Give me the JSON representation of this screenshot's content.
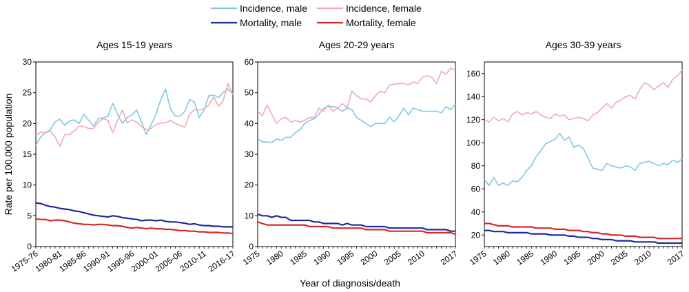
{
  "legend": [
    {
      "label": "Incidence, male",
      "color": "#7ec8e3"
    },
    {
      "label": "Incidence, female",
      "color": "#f2a6b8"
    },
    {
      "label": "Mortality, male",
      "color": "#1f2a9c"
    },
    {
      "label": "Mortality, female",
      "color": "#d62728"
    }
  ],
  "ylabel": "Rate per 100,000 population",
  "xlabel": "Year of diagnosis/death",
  "chart_data": [
    {
      "type": "line",
      "title": "Ages 15-19 years",
      "xlabel": "",
      "ylabel": "",
      "ylim": [
        0,
        30
      ],
      "yticks": [
        0,
        5,
        10,
        15,
        20,
        25,
        30
      ],
      "xlim": [
        1975,
        2016
      ],
      "xtick_labels": [
        {
          "x": 1975,
          "label": "1975-76"
        },
        {
          "x": 1980,
          "label": "1980-81"
        },
        {
          "x": 1985,
          "label": "1985-86"
        },
        {
          "x": 1990,
          "label": "1990-91"
        },
        {
          "x": 1995,
          "label": "1995-96"
        },
        {
          "x": 2000,
          "label": "2000-01"
        },
        {
          "x": 2005,
          "label": "2005-06"
        },
        {
          "x": 2010,
          "label": "2010-11"
        },
        {
          "x": 2016,
          "label": "2016-17"
        }
      ],
      "x": [
        1975,
        1976,
        1977,
        1978,
        1979,
        1980,
        1981,
        1982,
        1983,
        1984,
        1985,
        1986,
        1987,
        1988,
        1989,
        1990,
        1991,
        1992,
        1993,
        1994,
        1995,
        1996,
        1997,
        1998,
        1999,
        2000,
        2001,
        2002,
        2003,
        2004,
        2005,
        2006,
        2007,
        2008,
        2009,
        2010,
        2011,
        2012,
        2013,
        2014,
        2015,
        2016
      ],
      "series": [
        {
          "name": "Incidence, male",
          "color": "#7ec8e3",
          "values": [
            16.5,
            17.8,
            18.5,
            19.0,
            20.3,
            20.7,
            19.7,
            20.4,
            20.6,
            20.0,
            21.5,
            20.5,
            19.6,
            20.8,
            20.9,
            21.2,
            23.3,
            21.5,
            20.0,
            21.0,
            21.4,
            22.2,
            20.2,
            18.2,
            19.8,
            21.5,
            23.9,
            25.6,
            22.4,
            21.2,
            21.2,
            22.0,
            23.9,
            23.5,
            21.0,
            22.2,
            24.5,
            24.6,
            24.2,
            25.1,
            25.6,
            24.8
          ]
        },
        {
          "name": "Incidence, female",
          "color": "#f2a6b8",
          "values": [
            18.1,
            18.6,
            18.5,
            18.8,
            17.8,
            16.3,
            18.2,
            18.2,
            18.8,
            19.6,
            19.5,
            19.2,
            19.2,
            20.2,
            20.8,
            20.5,
            18.5,
            20.5,
            22.2,
            20.1,
            20.6,
            20.2,
            19.5,
            19.0,
            19.2,
            19.8,
            20.1,
            20.1,
            20.5,
            20.0,
            19.7,
            19.4,
            21.5,
            22.3,
            22.2,
            22.4,
            23.0,
            24.3,
            22.8,
            23.7,
            26.5,
            24.7
          ]
        },
        {
          "name": "Mortality, male",
          "color": "#1f2a9c",
          "values": [
            7.1,
            7.0,
            6.7,
            6.5,
            6.4,
            6.2,
            6.1,
            6.0,
            5.8,
            5.7,
            5.5,
            5.3,
            5.1,
            5.0,
            4.9,
            4.8,
            5.0,
            4.9,
            4.7,
            4.6,
            4.5,
            4.4,
            4.2,
            4.3,
            4.3,
            4.2,
            4.3,
            4.1,
            4.0,
            4.0,
            3.9,
            3.8,
            3.6,
            3.7,
            3.5,
            3.4,
            3.4,
            3.3,
            3.3,
            3.2,
            3.2,
            3.2
          ]
        },
        {
          "name": "Mortality, female",
          "color": "#d62728",
          "values": [
            4.5,
            4.4,
            4.4,
            4.2,
            4.3,
            4.3,
            4.2,
            4.0,
            3.8,
            3.7,
            3.6,
            3.6,
            3.5,
            3.6,
            3.6,
            3.5,
            3.4,
            3.4,
            3.3,
            3.1,
            3.0,
            3.1,
            3.0,
            2.9,
            3.0,
            2.9,
            2.9,
            2.8,
            2.8,
            2.7,
            2.6,
            2.6,
            2.5,
            2.5,
            2.4,
            2.4,
            2.3,
            2.3,
            2.3,
            2.2,
            2.2,
            2.1
          ]
        }
      ]
    },
    {
      "type": "line",
      "title": "Ages 20-29 years",
      "xlabel": "",
      "ylabel": "",
      "ylim": [
        0,
        60
      ],
      "yticks": [
        0,
        10,
        20,
        30,
        40,
        50,
        60
      ],
      "xlim": [
        1975,
        2017
      ],
      "xtick_labels": [
        {
          "x": 1975,
          "label": "1975"
        },
        {
          "x": 1980,
          "label": "1980"
        },
        {
          "x": 1985,
          "label": "1985"
        },
        {
          "x": 1990,
          "label": "1990"
        },
        {
          "x": 1995,
          "label": "1995"
        },
        {
          "x": 2000,
          "label": "2000"
        },
        {
          "x": 2005,
          "label": "2005"
        },
        {
          "x": 2010,
          "label": "2010"
        },
        {
          "x": 2017,
          "label": "2017"
        }
      ],
      "x": [
        1975,
        1976,
        1977,
        1978,
        1979,
        1980,
        1981,
        1982,
        1983,
        1984,
        1985,
        1986,
        1987,
        1988,
        1989,
        1990,
        1991,
        1992,
        1993,
        1994,
        1995,
        1996,
        1997,
        1998,
        1999,
        2000,
        2001,
        2002,
        2003,
        2004,
        2005,
        2006,
        2007,
        2008,
        2009,
        2010,
        2011,
        2012,
        2013,
        2014,
        2015,
        2016,
        2017
      ],
      "series": [
        {
          "name": "Incidence, male",
          "color": "#7ec8e3",
          "values": [
            35,
            34,
            34,
            33.8,
            35,
            34.5,
            35.5,
            35.5,
            37,
            38,
            40,
            41,
            41.5,
            43,
            45,
            45.5,
            45.5,
            45,
            44,
            45,
            44.5,
            42,
            41,
            40,
            39,
            40,
            40,
            40,
            42,
            40.5,
            42.5,
            45,
            42.8,
            45,
            44.5,
            44,
            44,
            44,
            44,
            43.5,
            45.5,
            44.5,
            46.3
          ]
        },
        {
          "name": "Incidence, female",
          "color": "#f2a6b8",
          "values": [
            44,
            42.5,
            46,
            43,
            40,
            41.5,
            42,
            40.5,
            41,
            40.5,
            41,
            42,
            42,
            45,
            44,
            46,
            44,
            45,
            46.5,
            45,
            50.5,
            49,
            48,
            48,
            47,
            49,
            50.5,
            50,
            52.5,
            52.8,
            53,
            53,
            52.5,
            53.5,
            53,
            55,
            55.5,
            55,
            53,
            57,
            56,
            58,
            57.3
          ]
        },
        {
          "name": "Mortality, male",
          "color": "#1f2a9c",
          "values": [
            10.5,
            10,
            10,
            9.5,
            10,
            9.5,
            9.5,
            8.5,
            8.5,
            8.5,
            8.5,
            8.5,
            8,
            8,
            7.5,
            7.5,
            7.5,
            7.5,
            7,
            7.5,
            7,
            7,
            7,
            6.5,
            6.5,
            6.5,
            6.5,
            6.5,
            6,
            6,
            6,
            6,
            6,
            6,
            6,
            6,
            5.5,
            5.5,
            5.5,
            5.5,
            5.5,
            5,
            5
          ]
        },
        {
          "name": "Mortality, female",
          "color": "#d62728",
          "values": [
            8,
            7.5,
            7,
            7,
            7,
            7,
            7,
            7,
            7,
            7,
            7,
            6.5,
            6.5,
            6.5,
            6.5,
            6.5,
            6,
            6,
            6,
            6,
            6,
            6,
            6,
            5.5,
            5.5,
            5.5,
            5.5,
            5.5,
            5,
            5,
            5,
            5,
            5,
            5,
            5,
            5,
            4.5,
            4.5,
            4.5,
            4.5,
            4.5,
            4.5,
            4
          ]
        }
      ]
    },
    {
      "type": "line",
      "title": "Ages 30-39 years",
      "xlabel": "",
      "ylabel": "",
      "ylim": [
        10,
        170
      ],
      "yticks": [
        20,
        40,
        60,
        80,
        100,
        120,
        140,
        160
      ],
      "xlim": [
        1975,
        2017
      ],
      "xtick_labels": [
        {
          "x": 1975,
          "label": "1975"
        },
        {
          "x": 1980,
          "label": "1980"
        },
        {
          "x": 1985,
          "label": "1985"
        },
        {
          "x": 1990,
          "label": "1990"
        },
        {
          "x": 1995,
          "label": "1995"
        },
        {
          "x": 2000,
          "label": "2000"
        },
        {
          "x": 2005,
          "label": "2005"
        },
        {
          "x": 2010,
          "label": "2010"
        },
        {
          "x": 2017,
          "label": "2017"
        }
      ],
      "x": [
        1975,
        1976,
        1977,
        1978,
        1979,
        1980,
        1981,
        1982,
        1983,
        1984,
        1985,
        1986,
        1987,
        1988,
        1989,
        1990,
        1991,
        1992,
        1993,
        1994,
        1995,
        1996,
        1997,
        1998,
        1999,
        2000,
        2001,
        2002,
        2003,
        2004,
        2005,
        2006,
        2007,
        2008,
        2009,
        2010,
        2011,
        2012,
        2013,
        2014,
        2015,
        2016,
        2017
      ],
      "series": [
        {
          "name": "Incidence, male",
          "color": "#7ec8e3",
          "values": [
            68,
            63,
            70,
            63,
            65,
            63,
            67,
            66,
            70,
            76,
            80,
            88,
            93,
            99,
            101,
            103,
            108,
            102,
            105,
            96,
            98,
            95,
            87,
            78,
            77,
            76,
            82,
            80,
            79,
            78,
            80,
            79,
            76,
            82,
            83,
            84,
            82,
            80,
            82,
            81,
            85,
            83,
            86
          ]
        },
        {
          "name": "Incidence, female",
          "color": "#f2a6b8",
          "values": [
            120,
            118,
            122,
            119,
            121,
            118,
            125,
            127,
            124,
            126,
            125,
            127,
            124,
            122,
            121,
            125,
            123,
            124,
            120,
            121,
            122,
            121,
            119,
            124,
            126,
            130,
            134,
            130,
            135,
            137,
            140,
            141,
            138,
            146,
            152,
            150,
            146,
            149,
            152,
            148,
            155,
            158,
            163
          ]
        },
        {
          "name": "Mortality, male",
          "color": "#1f2a9c",
          "values": [
            24,
            24,
            23,
            23,
            23,
            22,
            22,
            22,
            22,
            22,
            21,
            21,
            21,
            21,
            20,
            20,
            20,
            20,
            19,
            19,
            18,
            18,
            18,
            17,
            17,
            16,
            16,
            16,
            15,
            15,
            15,
            15,
            14,
            14,
            14,
            14,
            14,
            13,
            13,
            13,
            13,
            13,
            13
          ]
        },
        {
          "name": "Mortality, female",
          "color": "#d62728",
          "values": [
            30,
            30,
            29,
            28,
            28,
            28,
            27,
            27,
            27,
            27,
            27,
            26,
            26,
            26,
            26,
            25,
            25,
            25,
            24,
            24,
            24,
            23,
            23,
            22,
            22,
            21,
            21,
            20,
            20,
            20,
            19,
            19,
            19,
            18,
            18,
            18,
            18,
            17,
            17,
            17,
            17,
            17,
            17
          ]
        }
      ]
    }
  ]
}
